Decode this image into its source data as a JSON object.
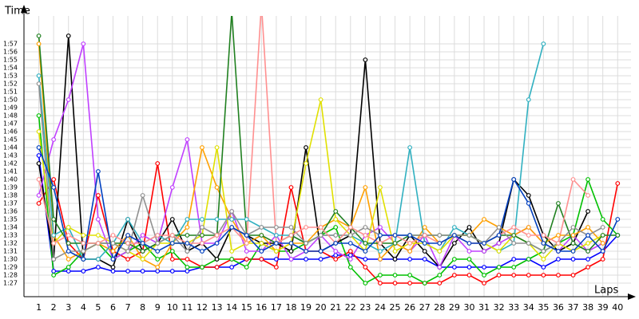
{
  "chart_data": {
    "type": "line",
    "y_label": "Time",
    "x_label": "Laps",
    "grid": true,
    "x": [
      1,
      2,
      3,
      4,
      5,
      6,
      7,
      8,
      9,
      10,
      11,
      12,
      13,
      14,
      15,
      16,
      17,
      18,
      19,
      20,
      21,
      22,
      23,
      24,
      25,
      26,
      27,
      28,
      29,
      30,
      31,
      32,
      33,
      34,
      35,
      36,
      37,
      38,
      39,
      40
    ],
    "xlim": [
      0,
      40.9
    ],
    "xticks": [
      1,
      2,
      3,
      4,
      5,
      6,
      7,
      8,
      9,
      10,
      11,
      12,
      13,
      14,
      15,
      16,
      17,
      18,
      19,
      20,
      21,
      22,
      23,
      24,
      25,
      26,
      27,
      28,
      29,
      30,
      31,
      32,
      33,
      34,
      35,
      36,
      37,
      38,
      39,
      40
    ],
    "ylim": [
      85.3,
      120.5
    ],
    "yticks": [
      {
        "value": 87,
        "label": "1:27"
      },
      {
        "value": 88,
        "label": "1:28"
      },
      {
        "value": 89,
        "label": "1:29"
      },
      {
        "value": 90,
        "label": "1:30"
      },
      {
        "value": 91,
        "label": "1:31"
      },
      {
        "value": 92,
        "label": "1:32"
      },
      {
        "value": 93,
        "label": "1:33"
      },
      {
        "value": 94,
        "label": "1:34"
      },
      {
        "value": 95,
        "label": "1:35"
      },
      {
        "value": 96,
        "label": "1:36"
      },
      {
        "value": 97,
        "label": "1:37"
      },
      {
        "value": 98,
        "label": "1:38"
      },
      {
        "value": 99,
        "label": "1:39"
      },
      {
        "value": 100,
        "label": "1:40"
      },
      {
        "value": 101,
        "label": "1:41"
      },
      {
        "value": 102,
        "label": "1:42"
      },
      {
        "value": 103,
        "label": "1:43"
      },
      {
        "value": 104,
        "label": "1:44"
      },
      {
        "value": 105,
        "label": "1:45"
      },
      {
        "value": 106,
        "label": "1:46"
      },
      {
        "value": 107,
        "label": "1:47"
      },
      {
        "value": 108,
        "label": "1:48"
      },
      {
        "value": 109,
        "label": "1:49"
      },
      {
        "value": 110,
        "label": "1:50"
      },
      {
        "value": 111,
        "label": "1:51"
      },
      {
        "value": 112,
        "label": "1:52"
      },
      {
        "value": 113,
        "label": "1:53"
      },
      {
        "value": 114,
        "label": "1:54"
      },
      {
        "value": 115,
        "label": "1:55"
      },
      {
        "value": 116,
        "label": "1:56"
      },
      {
        "value": 117,
        "label": "1:57"
      }
    ],
    "series": [
      {
        "color": "#0000ff",
        "values": [
          103,
          88.5,
          88.5,
          88.5,
          89,
          88.5,
          88.5,
          88.5,
          88.5,
          88.5,
          88.5,
          89,
          89,
          89,
          90,
          90,
          90,
          90,
          90,
          90,
          90.5,
          90.5,
          90,
          90,
          90,
          90,
          90,
          89,
          89,
          89,
          89,
          89,
          90,
          90,
          89,
          90,
          90,
          90,
          91,
          93
        ]
      },
      {
        "color": "#ff0000",
        "values": [
          97,
          100,
          92,
          90,
          98,
          91,
          90,
          91,
          102,
          90,
          90,
          89,
          89,
          90,
          90,
          90,
          89,
          99,
          91,
          91,
          90,
          91,
          89,
          87,
          87,
          87,
          87,
          87,
          88,
          88,
          87,
          88,
          88,
          88,
          88,
          88,
          88,
          89,
          90,
          99.5
        ]
      },
      {
        "color": "#00c000",
        "values": [
          108,
          88,
          89,
          91,
          92,
          90,
          91,
          92,
          90,
          91,
          89,
          89,
          90,
          90,
          89,
          92,
          91,
          91,
          92,
          93,
          94,
          89,
          87,
          88,
          88,
          88,
          87,
          88,
          90,
          90,
          88,
          89,
          89,
          90,
          91,
          92,
          93,
          100,
          95,
          93
        ]
      },
      {
        "color": "#000000",
        "values": [
          102,
          90,
          118,
          90,
          90,
          89,
          95,
          91,
          92,
          95,
          91,
          92,
          90,
          94,
          93,
          92,
          92,
          91,
          104,
          91,
          92,
          93,
          115,
          92,
          90,
          93,
          91,
          89,
          92,
          94,
          91,
          92,
          100,
          98,
          93,
          91,
          92,
          96,
          null,
          null
        ]
      },
      {
        "color": "#c040ff",
        "values": [
          98,
          105,
          110,
          117,
          95,
          90,
          91,
          93,
          92,
          99,
          105,
          92,
          92,
          96,
          91,
          91,
          93,
          90,
          91,
          93,
          91,
          90,
          93,
          94,
          92,
          91,
          93,
          89,
          93,
          91,
          91,
          92,
          93,
          94,
          92,
          91,
          93,
          91,
          92,
          null
        ]
      },
      {
        "color": "#ffa000",
        "values": [
          117,
          93,
          90,
          91,
          92,
          91,
          93,
          90,
          89,
          92,
          94,
          104,
          99,
          95,
          92,
          93,
          91,
          92,
          92,
          94,
          95,
          94,
          99,
          90,
          92,
          91,
          94,
          92,
          93,
          93,
          95,
          94,
          93,
          94,
          92,
          93,
          93,
          94,
          92,
          null
        ]
      },
      {
        "color": "#30b0c0",
        "values": [
          113,
          93,
          94,
          90,
          90,
          92,
          95,
          92,
          93,
          92,
          95,
          95,
          95,
          95,
          95,
          94,
          93,
          93,
          92,
          93,
          93,
          93,
          92,
          91,
          92,
          104,
          92,
          91,
          94,
          93,
          92,
          91,
          92,
          110,
          117,
          null,
          null,
          null,
          null,
          null
        ]
      },
      {
        "color": "#e0e000",
        "values": [
          106,
          92,
          94,
          93,
          93,
          92,
          91,
          90,
          92,
          92,
          92,
          93,
          104,
          91,
          92,
          92,
          91,
          92,
          102,
          110,
          95,
          93,
          91,
          99,
          91,
          92,
          92,
          91,
          93,
          93,
          92,
          91,
          93,
          92,
          90,
          92,
          91,
          92,
          93,
          null
        ]
      },
      {
        "color": "#208020",
        "values": [
          118,
          95,
          92,
          92,
          92,
          92,
          92,
          91,
          92,
          93,
          93,
          93,
          93,
          121,
          93,
          93,
          92,
          93,
          92,
          93,
          96,
          94,
          92,
          92,
          92,
          93,
          93,
          93,
          93,
          93,
          92,
          93,
          93,
          92,
          91,
          97,
          92,
          91,
          93,
          93
        ]
      },
      {
        "color": "#909090",
        "values": [
          112,
          90,
          91,
          91,
          92,
          92,
          91,
          98,
          92,
          93,
          91,
          94,
          93,
          96,
          93,
          94,
          94,
          94,
          92,
          93,
          93,
          93,
          94,
          93,
          93,
          93,
          93,
          93,
          93,
          93,
          92,
          94,
          92,
          92,
          91,
          92,
          94,
          93,
          94,
          null
        ]
      },
      {
        "color": "#ff9090",
        "values": [
          100,
          92,
          93,
          92,
          92,
          93,
          92,
          92,
          93,
          93,
          92,
          92,
          93,
          94,
          92,
          122,
          92,
          93,
          94,
          94,
          92,
          94,
          93,
          92,
          93,
          92,
          93,
          92,
          93,
          92,
          92,
          93,
          94,
          93,
          93,
          92,
          100,
          98,
          null,
          null
        ]
      },
      {
        "color": "#0040c0",
        "values": [
          104,
          99,
          91,
          90,
          101,
          90,
          93,
          92,
          91,
          92,
          92,
          91,
          92,
          94,
          93,
          91,
          92,
          92,
          91,
          91,
          92,
          92,
          91,
          93,
          93,
          93,
          92,
          92,
          93,
          92,
          92,
          93,
          100,
          97,
          92,
          91,
          91,
          93,
          91,
          95
        ]
      }
    ]
  }
}
